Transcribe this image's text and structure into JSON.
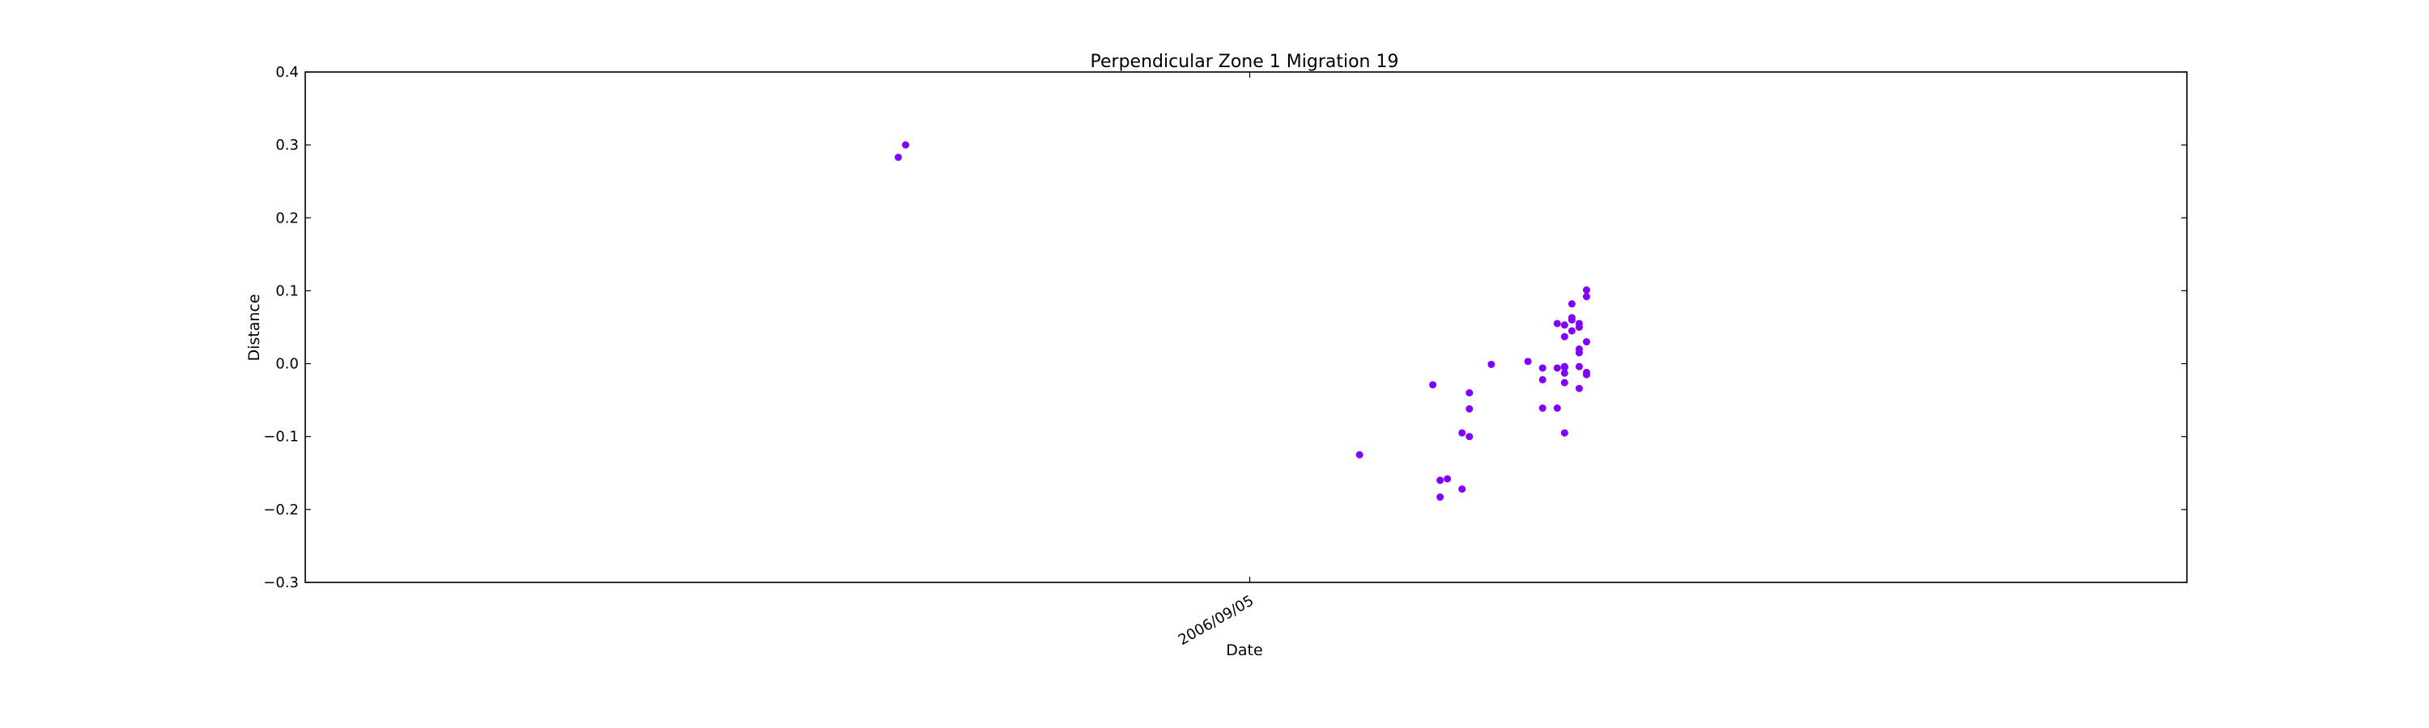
{
  "chart_data": {
    "type": "scatter",
    "title": "Perpendicular Zone 1 Migration 19",
    "xlabel": "Date",
    "ylabel": "Distance",
    "ylim": [
      -0.3,
      0.4
    ],
    "yticks": [
      -0.3,
      -0.2,
      -0.1,
      0.0,
      0.1,
      0.2,
      0.3,
      0.4
    ],
    "ytick_labels": [
      "−0.3",
      "−0.2",
      "−0.1",
      "0.0",
      "0.1",
      "0.2",
      "0.3",
      "0.4"
    ],
    "xlim": [
      "2006/04/29",
      "2007/01/11"
    ],
    "xticks": [
      "2006/09/05"
    ],
    "xtick_labels": [
      "2006/09/05"
    ],
    "grid": false,
    "marker_color": "#8000ff",
    "points": [
      {
        "x": "2006/07/19",
        "y": 0.283
      },
      {
        "x": "2006/07/20",
        "y": 0.3
      },
      {
        "x": "2006/09/20",
        "y": -0.125
      },
      {
        "x": "2006/09/30",
        "y": -0.029
      },
      {
        "x": "2006/10/01",
        "y": -0.183
      },
      {
        "x": "2006/10/01",
        "y": -0.16
      },
      {
        "x": "2006/10/02",
        "y": -0.158
      },
      {
        "x": "2006/10/04",
        "y": -0.095
      },
      {
        "x": "2006/10/04",
        "y": -0.172
      },
      {
        "x": "2006/10/05",
        "y": -0.062
      },
      {
        "x": "2006/10/05",
        "y": -0.04
      },
      {
        "x": "2006/10/05",
        "y": -0.1
      },
      {
        "x": "2006/10/08",
        "y": -0.001
      },
      {
        "x": "2006/10/13",
        "y": 0.003
      },
      {
        "x": "2006/10/15",
        "y": -0.006
      },
      {
        "x": "2006/10/15",
        "y": -0.022
      },
      {
        "x": "2006/10/15",
        "y": -0.061
      },
      {
        "x": "2006/10/17",
        "y": 0.055
      },
      {
        "x": "2006/10/17",
        "y": -0.006
      },
      {
        "x": "2006/10/17",
        "y": -0.061
      },
      {
        "x": "2006/10/18",
        "y": 0.053
      },
      {
        "x": "2006/10/18",
        "y": -0.004
      },
      {
        "x": "2006/10/18",
        "y": -0.026
      },
      {
        "x": "2006/10/18",
        "y": -0.095
      },
      {
        "x": "2006/10/18",
        "y": 0.037
      },
      {
        "x": "2006/10/18",
        "y": -0.013
      },
      {
        "x": "2006/10/18",
        "y": -0.005
      },
      {
        "x": "2006/10/19",
        "y": 0.06
      },
      {
        "x": "2006/10/19",
        "y": 0.082
      },
      {
        "x": "2006/10/19",
        "y": 0.045
      },
      {
        "x": "2006/10/19",
        "y": 0.063
      },
      {
        "x": "2006/10/20",
        "y": 0.02
      },
      {
        "x": "2006/10/20",
        "y": 0.055
      },
      {
        "x": "2006/10/20",
        "y": 0.05
      },
      {
        "x": "2006/10/20",
        "y": -0.034
      },
      {
        "x": "2006/10/20",
        "y": 0.015
      },
      {
        "x": "2006/10/20",
        "y": -0.004
      },
      {
        "x": "2006/10/21",
        "y": 0.101
      },
      {
        "x": "2006/10/21",
        "y": 0.092
      },
      {
        "x": "2006/10/21",
        "y": -0.012
      },
      {
        "x": "2006/10/21",
        "y": 0.03
      },
      {
        "x": "2006/10/21",
        "y": -0.015
      }
    ]
  }
}
